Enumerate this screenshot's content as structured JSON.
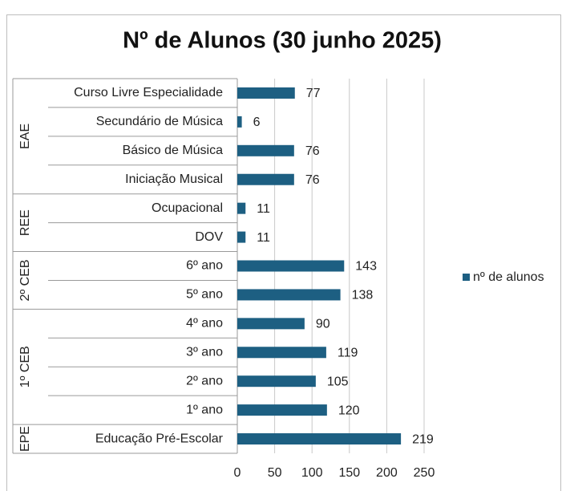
{
  "chart_data": {
    "type": "bar",
    "orientation": "horizontal",
    "title": "Nº de Alunos (30 junho 2025)",
    "groups": [
      {
        "name": "EAE",
        "categories": [
          "Curso Livre Especialidade",
          "Secundário de Música",
          "Básico de Música",
          "Iniciação Musical"
        ]
      },
      {
        "name": "REE",
        "categories": [
          "Ocupacional",
          "DOV"
        ]
      },
      {
        "name": "2º CEB",
        "categories": [
          "6º ano",
          "5º ano"
        ]
      },
      {
        "name": "1º CEB",
        "categories": [
          "4º ano",
          "3º ano",
          "2º ano",
          "1º ano"
        ]
      },
      {
        "name": "EPE",
        "categories": [
          "Educação Pré-Escolar"
        ]
      }
    ],
    "series": [
      {
        "name": "nº de alunos",
        "color": "#1d5f82",
        "values": [
          77,
          6,
          76,
          76,
          11,
          11,
          143,
          138,
          90,
          119,
          105,
          120,
          219
        ]
      }
    ],
    "xlim": [
      0,
      250
    ],
    "xticks": [
      0,
      50,
      100,
      150,
      200,
      250
    ],
    "grid": true,
    "legend": "right"
  }
}
